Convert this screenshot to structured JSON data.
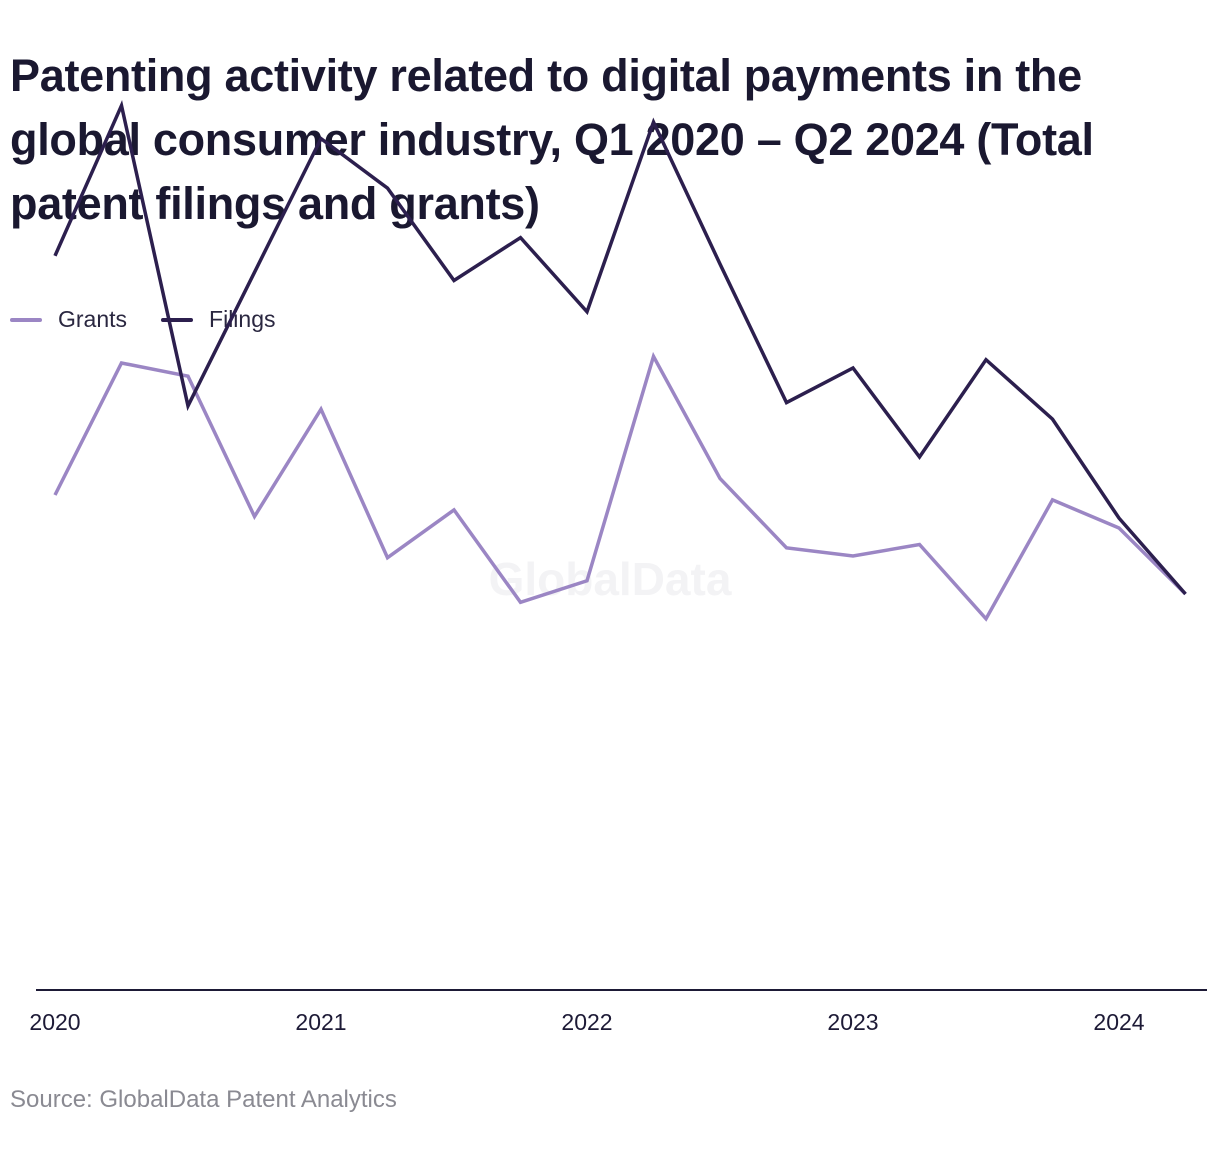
{
  "title": "Patenting activity related to digital payments in the global consumer industry, Q1 2020 – Q2 2024 (Total patent filings and grants)",
  "source": "Source: GlobalData Patent Analytics",
  "watermark": "GlobalData",
  "colors": {
    "grants": "#9b86c4",
    "filings": "#2c1f4e",
    "axis": "#1d1a36"
  },
  "chart_data": {
    "type": "line",
    "title": "Patenting activity related to digital payments in the global consumer industry, Q1 2020 – Q2 2024 (Total patent filings and grants)",
    "x": [
      "Q1 2020",
      "Q2 2020",
      "Q3 2020",
      "Q4 2020",
      "Q1 2021",
      "Q2 2021",
      "Q3 2021",
      "Q4 2021",
      "Q1 2022",
      "Q2 2022",
      "Q3 2022",
      "Q4 2022",
      "Q1 2023",
      "Q2 2023",
      "Q3 2023",
      "Q4 2023",
      "Q1 2024",
      "Q2 2024"
    ],
    "x_tick_labels": [
      "2020",
      "2021",
      "2022",
      "2023",
      "2024"
    ],
    "y_axis_visible": false,
    "ylim": [
      0,
      600
    ],
    "grid": false,
    "legend_position": "top-left",
    "series": [
      {
        "name": "Grants",
        "color": "#9b86c4",
        "values": [
          300,
          380,
          372,
          287,
          352,
          262,
          291,
          235,
          248,
          384,
          310,
          268,
          263,
          270,
          225,
          297,
          280,
          240
        ]
      },
      {
        "name": "Filings",
        "color": "#2c1f4e",
        "values": [
          445,
          536,
          354,
          435,
          516,
          486,
          430,
          456,
          411,
          526,
          440,
          356,
          377,
          323,
          382,
          346,
          286,
          240
        ]
      }
    ]
  }
}
